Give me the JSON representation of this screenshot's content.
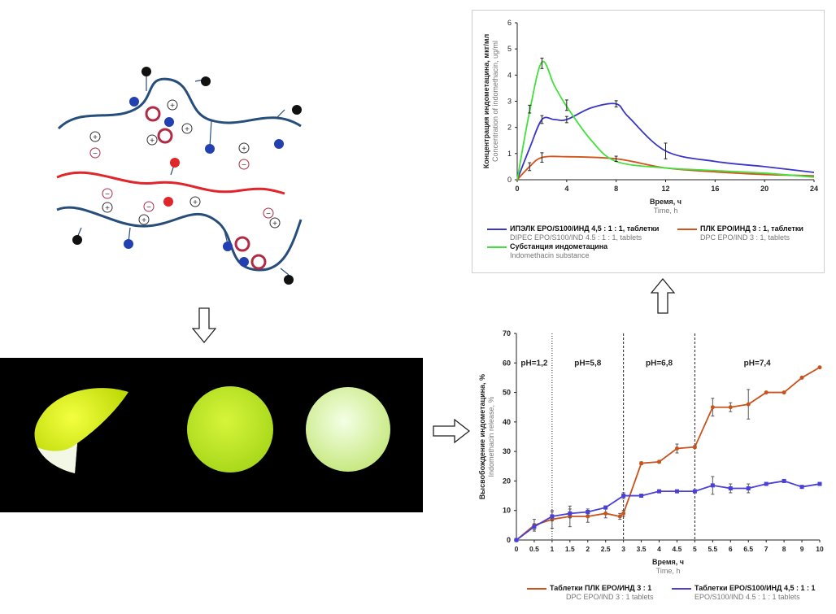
{
  "chart_data": [
    {
      "type": "line",
      "ylabel": "Концентрация индометацина, мкг/мл",
      "ylabel_en": "Concentration of indomethacin, ug/ml",
      "xlabel": "Время, ч",
      "xlabel_en": "Time, h",
      "x_ticks": [
        0,
        4,
        8,
        12,
        16,
        20,
        24
      ],
      "y_ticks": [
        0,
        1,
        2,
        3,
        4,
        5,
        6
      ],
      "xlim": [
        0,
        24
      ],
      "ylim": [
        0,
        6
      ],
      "grid": false,
      "series": [
        {
          "name": "ИПЭЛК EPO/S100/ИНД 4,5 : 1 : 1, таблетки",
          "name_en": "DIPEC EPO/S100/IND 4.5 : 1 : 1, tablets",
          "color": "#3b36c9",
          "x": [
            0,
            1,
            2,
            3,
            4,
            6,
            8,
            9,
            12,
            16,
            20,
            24
          ],
          "y": [
            0,
            1.2,
            2.3,
            2.3,
            2.3,
            2.75,
            2.9,
            2.4,
            1.1,
            0.7,
            0.5,
            0.28
          ]
        },
        {
          "name": "ПЛК EPO/ИНД 3 : 1, таблетки",
          "name_en": "DPC EPO/IND 3 : 1, tablets",
          "color": "#d2531a",
          "x": [
            0,
            1,
            2,
            4,
            8,
            12,
            16,
            20,
            24
          ],
          "y": [
            0,
            0.5,
            0.85,
            0.88,
            0.8,
            0.45,
            0.3,
            0.2,
            0.15
          ]
        },
        {
          "name": "Субстанция индометацина",
          "name_en": "Indomethacin substance",
          "color": "#42e03a",
          "x": [
            0,
            1,
            2,
            3,
            4,
            6,
            8,
            12,
            16,
            20,
            24
          ],
          "y": [
            0,
            2.6,
            4.5,
            3.6,
            2.8,
            1.5,
            0.7,
            0.45,
            0.35,
            0.25,
            0.1
          ]
        }
      ],
      "error_bars": [
        {
          "series": 0,
          "x": [
            2,
            4,
            8,
            12
          ],
          "y": [
            2.3,
            2.3,
            2.9,
            1.1
          ],
          "err": [
            0.15,
            0.12,
            0.12,
            0.3
          ]
        },
        {
          "series": 1,
          "x": [
            1,
            2,
            8
          ],
          "y": [
            0.5,
            0.85,
            0.8
          ],
          "err": [
            0.15,
            0.18,
            0.1
          ]
        },
        {
          "series": 2,
          "x": [
            1,
            2,
            4
          ],
          "y": [
            2.7,
            4.45,
            2.85
          ],
          "err": [
            0.15,
            0.2,
            0.2
          ]
        }
      ]
    },
    {
      "type": "line",
      "ylabel": "Высвобождение индометацина, %",
      "ylabel_en": "Indomethacin release, %",
      "xlabel": "Время, ч",
      "xlabel_en": "Time, h",
      "x_ticks": [
        "0",
        "0.5",
        "1",
        "1.5",
        "2",
        "2.5",
        "3",
        "3.5",
        "4",
        "4.5",
        "5",
        "5.5",
        "6",
        "6.5",
        "7",
        "8",
        "9",
        "10"
      ],
      "y_ticks": [
        0,
        10,
        20,
        30,
        40,
        50,
        60,
        70
      ],
      "ylim": [
        0,
        70
      ],
      "ph_labels": [
        "pH=1,2",
        "pH=5,8",
        "pH=6,8",
        "pH=7,4"
      ],
      "ph_boundaries": [
        1,
        3,
        5
      ],
      "series": [
        {
          "name": "Таблетки ПЛК EPO/ИНД 3 : 1",
          "name_en": "DPC EPO/IND 3 : 1 tablets",
          "color": "#c8531d",
          "marker": "circle",
          "x": [
            0,
            0.5,
            1,
            1.5,
            2,
            2.5,
            2.9,
            3,
            3.5,
            4,
            4.5,
            5,
            5.5,
            6,
            6.5,
            7,
            8,
            9,
            10
          ],
          "y": [
            0,
            5,
            7,
            8,
            8,
            9,
            8,
            9,
            26,
            26.5,
            31,
            31.5,
            45,
            45,
            46,
            50,
            50,
            55,
            58.5
          ],
          "err": [
            0,
            2,
            3,
            3.5,
            2,
            1.5,
            1,
            1,
            0.5,
            0.5,
            1.5,
            0.5,
            3,
            1.5,
            5,
            0,
            0,
            0,
            0
          ]
        },
        {
          "name": "Таблетки EPO/S100/ИНД 4,5 : 1 : 1",
          "name_en": "EPO/S100/IND 4.5 : 1 : 1 tablets",
          "color": "#4a3fd6",
          "marker": "square",
          "x": [
            0,
            0.5,
            1,
            1.5,
            2,
            2.5,
            3,
            3.5,
            4,
            4.5,
            5,
            5.5,
            6,
            6.5,
            7,
            8,
            9,
            10
          ],
          "y": [
            0,
            4.5,
            8,
            9,
            9.5,
            11,
            15,
            15,
            16.5,
            16.5,
            16.5,
            18.5,
            17.5,
            17.5,
            19,
            20,
            18,
            19
          ],
          "err": [
            0,
            1,
            1.5,
            1.5,
            1,
            0.5,
            1,
            0.5,
            0,
            0,
            0,
            3,
            1.5,
            1.5,
            0,
            0,
            0,
            0
          ]
        }
      ]
    }
  ]
}
